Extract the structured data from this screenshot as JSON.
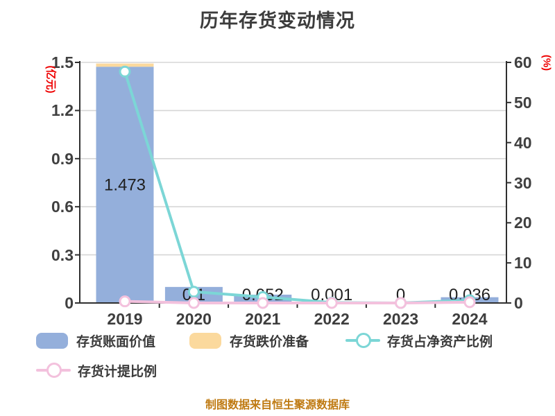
{
  "title": "历年存货变动情况",
  "footer": "制图数据来自恒生聚源数据库",
  "left_axis": {
    "unit_label": "(亿元)",
    "ticks": [
      0,
      0.3,
      0.6,
      0.9,
      1.2,
      1.5
    ],
    "max": 1.5,
    "unit_color": "#ee0000"
  },
  "right_axis": {
    "unit_label": "(%)",
    "ticks": [
      0,
      10,
      20,
      30,
      40,
      50,
      60
    ],
    "max": 60,
    "unit_color": "#ee0000"
  },
  "legend": [
    {
      "label": "存货账面价值",
      "type": "bar",
      "color": "#94afdb"
    },
    {
      "label": "存货跌价准备",
      "type": "bar",
      "color": "#fbd99d"
    },
    {
      "label": "存货占净资产比例",
      "type": "line",
      "color": "#7cd6d6"
    },
    {
      "label": "存货计提比例",
      "type": "line",
      "color": "#f3c1dd"
    }
  ],
  "colors": {
    "bar_book_value": "#94afdb",
    "bar_provision": "#fbd99d",
    "line_net_asset_ratio": "#7cd6d6",
    "line_provision_ratio": "#f3c1dd",
    "grid": "#d6d6d6",
    "axis": "#2f2f2f",
    "tick_text": "#404040",
    "value_label": "#1f1f1f",
    "title_text": "#3c3c3c",
    "footer_text": "#bf7a12"
  },
  "chart_data": {
    "type": "bar",
    "title": "历年存货变动情况",
    "categories": [
      "2019",
      "2020",
      "2021",
      "2022",
      "2023",
      "2024"
    ],
    "left_ylabel": "(亿元)",
    "right_ylabel": "(%)",
    "left_ylim": [
      0,
      1.5
    ],
    "right_ylim": [
      0,
      60
    ],
    "grid": true,
    "legend_position": "bottom",
    "series": [
      {
        "name": "存货账面价值",
        "type": "bar",
        "axis": "left",
        "color": "#94afdb",
        "values": [
          1.473,
          0.1,
          0.052,
          0.001,
          0,
          0.036
        ],
        "data_labels": [
          "1.473",
          "0.1",
          "0.052",
          "0.001",
          "0",
          "0.036"
        ]
      },
      {
        "name": "存货跌价准备",
        "type": "bar",
        "axis": "left",
        "stacked": true,
        "color": "#fbd99d",
        "values": [
          0.02,
          0,
          0,
          0,
          0,
          0
        ]
      },
      {
        "name": "存货占净资产比例",
        "type": "line",
        "axis": "right",
        "color": "#7cd6d6",
        "marker": "circle-white",
        "values": [
          57.7,
          2.8,
          1.5,
          0.1,
          0,
          0.7
        ]
      },
      {
        "name": "存货计提比例",
        "type": "line",
        "axis": "right",
        "color": "#f3c1dd",
        "marker": "circle-white",
        "values": [
          0.4,
          0,
          0,
          0,
          0,
          0.2
        ]
      }
    ]
  }
}
